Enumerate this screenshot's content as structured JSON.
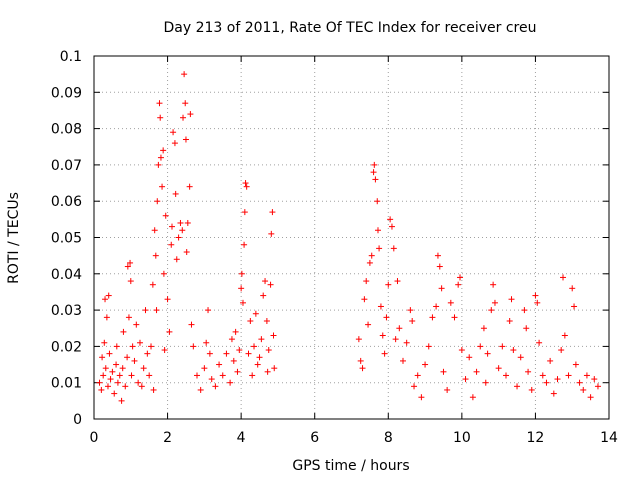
{
  "chart_data": {
    "type": "scatter",
    "title": "Day 213 of 2011, Rate Of TEC Index for receiver creu",
    "xlabel": "GPS time / hours",
    "ylabel": "ROTI / TECUs",
    "xlim": [
      0,
      14
    ],
    "ylim": [
      0,
      0.1
    ],
    "x_ticks": [
      "0",
      "2",
      "4",
      "6",
      "8",
      "10",
      "12",
      "14"
    ],
    "y_ticks": [
      "0",
      "0.01",
      "0.02",
      "0.03",
      "0.04",
      "0.05",
      "0.06",
      "0.07",
      "0.08",
      "0.09",
      "0.1"
    ],
    "grid": true,
    "marker": "+",
    "color": "#ff0000",
    "series": [
      {
        "points": [
          [
            0.15,
            0.01
          ],
          [
            0.2,
            0.008
          ],
          [
            0.22,
            0.017
          ],
          [
            0.25,
            0.012
          ],
          [
            0.28,
            0.021
          ],
          [
            0.3,
            0.033
          ],
          [
            0.32,
            0.014
          ],
          [
            0.35,
            0.028
          ],
          [
            0.38,
            0.009
          ],
          [
            0.4,
            0.034
          ],
          [
            0.42,
            0.018
          ],
          [
            0.45,
            0.011
          ],
          [
            0.5,
            0.013
          ],
          [
            0.55,
            0.007
          ],
          [
            0.6,
            0.015
          ],
          [
            0.62,
            0.02
          ],
          [
            0.65,
            0.01
          ],
          [
            0.7,
            0.012
          ],
          [
            0.75,
            0.005
          ],
          [
            0.78,
            0.014
          ],
          [
            0.8,
            0.024
          ],
          [
            0.85,
            0.009
          ],
          [
            0.9,
            0.017
          ],
          [
            0.92,
            0.042
          ],
          [
            0.95,
            0.028
          ],
          [
            0.98,
            0.043
          ],
          [
            1.0,
            0.038
          ],
          [
            1.02,
            0.012
          ],
          [
            1.05,
            0.02
          ],
          [
            1.1,
            0.016
          ],
          [
            1.15,
            0.026
          ],
          [
            1.2,
            0.01
          ],
          [
            1.25,
            0.021
          ],
          [
            1.3,
            0.009
          ],
          [
            1.35,
            0.014
          ],
          [
            1.4,
            0.03
          ],
          [
            1.45,
            0.018
          ],
          [
            1.5,
            0.012
          ],
          [
            1.55,
            0.02
          ],
          [
            1.6,
            0.037
          ],
          [
            1.62,
            0.008
          ],
          [
            1.65,
            0.052
          ],
          [
            1.68,
            0.045
          ],
          [
            1.7,
            0.03
          ],
          [
            1.72,
            0.06
          ],
          [
            1.75,
            0.07
          ],
          [
            1.78,
            0.087
          ],
          [
            1.8,
            0.083
          ],
          [
            1.82,
            0.072
          ],
          [
            1.85,
            0.064
          ],
          [
            1.88,
            0.074
          ],
          [
            1.9,
            0.04
          ],
          [
            1.92,
            0.019
          ],
          [
            1.95,
            0.056
          ],
          [
            2.0,
            0.033
          ],
          [
            2.05,
            0.024
          ],
          [
            2.1,
            0.048
          ],
          [
            2.12,
            0.053
          ],
          [
            2.15,
            0.079
          ],
          [
            2.2,
            0.076
          ],
          [
            2.22,
            0.062
          ],
          [
            2.25,
            0.044
          ],
          [
            2.3,
            0.05
          ],
          [
            2.35,
            0.054
          ],
          [
            2.4,
            0.052
          ],
          [
            2.42,
            0.083
          ],
          [
            2.45,
            0.095
          ],
          [
            2.48,
            0.087
          ],
          [
            2.5,
            0.077
          ],
          [
            2.52,
            0.046
          ],
          [
            2.55,
            0.054
          ],
          [
            2.6,
            0.064
          ],
          [
            2.62,
            0.084
          ],
          [
            2.65,
            0.026
          ],
          [
            2.7,
            0.02
          ],
          [
            2.8,
            0.012
          ],
          [
            2.9,
            0.008
          ],
          [
            3.0,
            0.014
          ],
          [
            3.05,
            0.021
          ],
          [
            3.1,
            0.03
          ],
          [
            3.15,
            0.018
          ],
          [
            3.2,
            0.011
          ],
          [
            3.3,
            0.009
          ],
          [
            3.4,
            0.015
          ],
          [
            3.5,
            0.012
          ],
          [
            3.6,
            0.018
          ],
          [
            3.7,
            0.01
          ],
          [
            3.75,
            0.022
          ],
          [
            3.8,
            0.016
          ],
          [
            3.85,
            0.024
          ],
          [
            3.9,
            0.013
          ],
          [
            3.95,
            0.019
          ],
          [
            4.0,
            0.036
          ],
          [
            4.02,
            0.04
          ],
          [
            4.05,
            0.032
          ],
          [
            4.08,
            0.048
          ],
          [
            4.1,
            0.057
          ],
          [
            4.12,
            0.065
          ],
          [
            4.15,
            0.064
          ],
          [
            4.2,
            0.018
          ],
          [
            4.25,
            0.027
          ],
          [
            4.3,
            0.012
          ],
          [
            4.35,
            0.02
          ],
          [
            4.4,
            0.029
          ],
          [
            4.45,
            0.015
          ],
          [
            4.5,
            0.017
          ],
          [
            4.55,
            0.022
          ],
          [
            4.6,
            0.034
          ],
          [
            4.65,
            0.038
          ],
          [
            4.7,
            0.027
          ],
          [
            4.72,
            0.013
          ],
          [
            4.75,
            0.019
          ],
          [
            4.8,
            0.037
          ],
          [
            4.82,
            0.051
          ],
          [
            4.85,
            0.057
          ],
          [
            4.88,
            0.023
          ],
          [
            4.9,
            0.014
          ],
          [
            7.2,
            0.022
          ],
          [
            7.25,
            0.016
          ],
          [
            7.3,
            0.014
          ],
          [
            7.35,
            0.033
          ],
          [
            7.4,
            0.038
          ],
          [
            7.45,
            0.026
          ],
          [
            7.5,
            0.043
          ],
          [
            7.55,
            0.045
          ],
          [
            7.6,
            0.068
          ],
          [
            7.62,
            0.07
          ],
          [
            7.65,
            0.066
          ],
          [
            7.7,
            0.06
          ],
          [
            7.72,
            0.052
          ],
          [
            7.75,
            0.047
          ],
          [
            7.8,
            0.031
          ],
          [
            7.85,
            0.023
          ],
          [
            7.9,
            0.018
          ],
          [
            7.95,
            0.028
          ],
          [
            8.0,
            0.037
          ],
          [
            8.05,
            0.055
          ],
          [
            8.1,
            0.053
          ],
          [
            8.15,
            0.047
          ],
          [
            8.2,
            0.022
          ],
          [
            8.25,
            0.038
          ],
          [
            8.3,
            0.025
          ],
          [
            8.4,
            0.016
          ],
          [
            8.5,
            0.021
          ],
          [
            8.6,
            0.03
          ],
          [
            8.65,
            0.027
          ],
          [
            8.7,
            0.009
          ],
          [
            8.8,
            0.012
          ],
          [
            8.9,
            0.006
          ],
          [
            9.0,
            0.015
          ],
          [
            9.1,
            0.02
          ],
          [
            9.2,
            0.028
          ],
          [
            9.3,
            0.031
          ],
          [
            9.35,
            0.045
          ],
          [
            9.4,
            0.042
          ],
          [
            9.45,
            0.036
          ],
          [
            9.5,
            0.013
          ],
          [
            9.6,
            0.008
          ],
          [
            9.7,
            0.032
          ],
          [
            9.8,
            0.028
          ],
          [
            9.9,
            0.037
          ],
          [
            9.95,
            0.039
          ],
          [
            10.0,
            0.019
          ],
          [
            10.1,
            0.011
          ],
          [
            10.2,
            0.017
          ],
          [
            10.3,
            0.006
          ],
          [
            10.4,
            0.013
          ],
          [
            10.5,
            0.02
          ],
          [
            10.6,
            0.025
          ],
          [
            10.65,
            0.01
          ],
          [
            10.7,
            0.018
          ],
          [
            10.8,
            0.03
          ],
          [
            10.85,
            0.037
          ],
          [
            10.9,
            0.032
          ],
          [
            11.0,
            0.014
          ],
          [
            11.1,
            0.02
          ],
          [
            11.2,
            0.012
          ],
          [
            11.3,
            0.027
          ],
          [
            11.35,
            0.033
          ],
          [
            11.4,
            0.019
          ],
          [
            11.5,
            0.009
          ],
          [
            11.6,
            0.017
          ],
          [
            11.7,
            0.03
          ],
          [
            11.75,
            0.025
          ],
          [
            11.8,
            0.013
          ],
          [
            11.9,
            0.008
          ],
          [
            12.0,
            0.034
          ],
          [
            12.05,
            0.032
          ],
          [
            12.1,
            0.021
          ],
          [
            12.2,
            0.012
          ],
          [
            12.3,
            0.01
          ],
          [
            12.4,
            0.016
          ],
          [
            12.5,
            0.007
          ],
          [
            12.6,
            0.011
          ],
          [
            12.7,
            0.019
          ],
          [
            12.75,
            0.039
          ],
          [
            12.8,
            0.023
          ],
          [
            12.9,
            0.012
          ],
          [
            13.0,
            0.036
          ],
          [
            13.05,
            0.031
          ],
          [
            13.1,
            0.015
          ],
          [
            13.2,
            0.01
          ],
          [
            13.3,
            0.008
          ],
          [
            13.4,
            0.012
          ],
          [
            13.5,
            0.006
          ],
          [
            13.6,
            0.011
          ],
          [
            13.7,
            0.009
          ]
        ]
      }
    ]
  }
}
